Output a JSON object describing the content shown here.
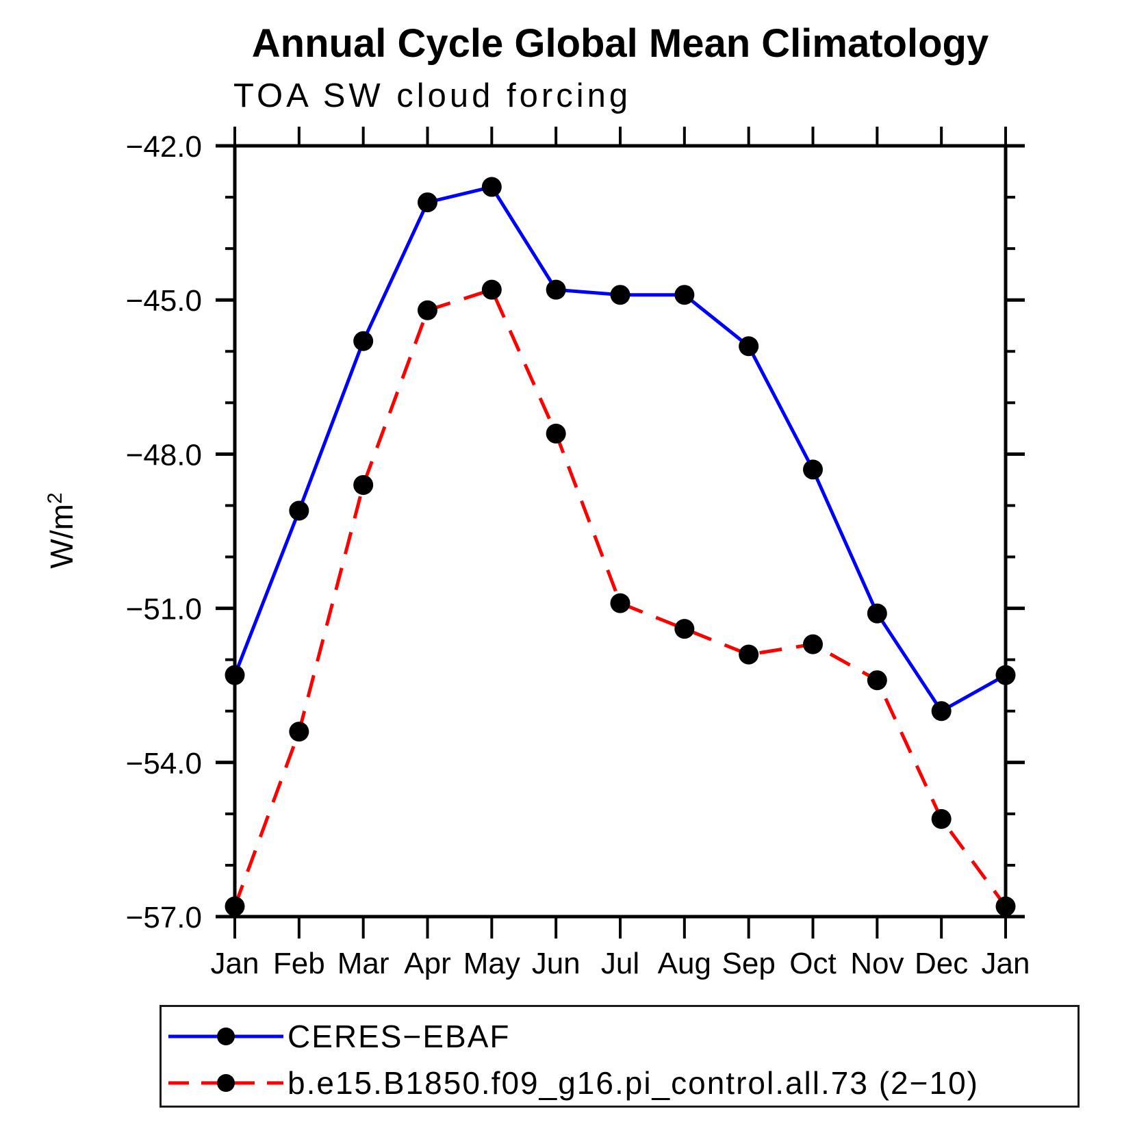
{
  "chart_data": {
    "type": "line",
    "title": "Annual Cycle Global Mean Climatology",
    "subtitle": "TOA SW cloud forcing",
    "ylabel": "W/m",
    "ylabel_exponent": "2",
    "x_categories": [
      "Jan",
      "Feb",
      "Mar",
      "Apr",
      "May",
      "Jun",
      "Jul",
      "Aug",
      "Sep",
      "Oct",
      "Nov",
      "Dec",
      "Jan"
    ],
    "y_tick_labels": [
      "−42.0",
      "−45.0",
      "−48.0",
      "−51.0",
      "−54.0",
      "−57.0"
    ],
    "y_major_ticks": [
      -42.0,
      -45.0,
      -48.0,
      -51.0,
      -54.0,
      -57.0
    ],
    "y_minor_interval": 1.0,
    "ylim": [
      -57.0,
      -42.0
    ],
    "grid": false,
    "legend_position": "bottom",
    "axis_color": "#000000",
    "background_color": "#ffffff",
    "marker_color": "#000000",
    "series": [
      {
        "name": "CERES−EBAF",
        "color": "#0000ff",
        "line_style": "solid",
        "marker": "circle",
        "values": [
          -52.3,
          -49.1,
          -45.8,
          -43.1,
          -42.8,
          -44.8,
          -44.9,
          -44.9,
          -45.9,
          -48.3,
          -51.1,
          -53.0,
          -52.3
        ]
      },
      {
        "name": "b.e15.B1850.f09_g16.pi_control.all.73 (2−10)",
        "color": "#ff0000",
        "line_style": "dashed",
        "marker": "circle",
        "values": [
          -56.8,
          -53.4,
          -48.6,
          -45.2,
          -44.8,
          -47.6,
          -50.9,
          -51.4,
          -51.9,
          -51.7,
          -52.4,
          -55.1,
          -56.8
        ]
      }
    ]
  }
}
